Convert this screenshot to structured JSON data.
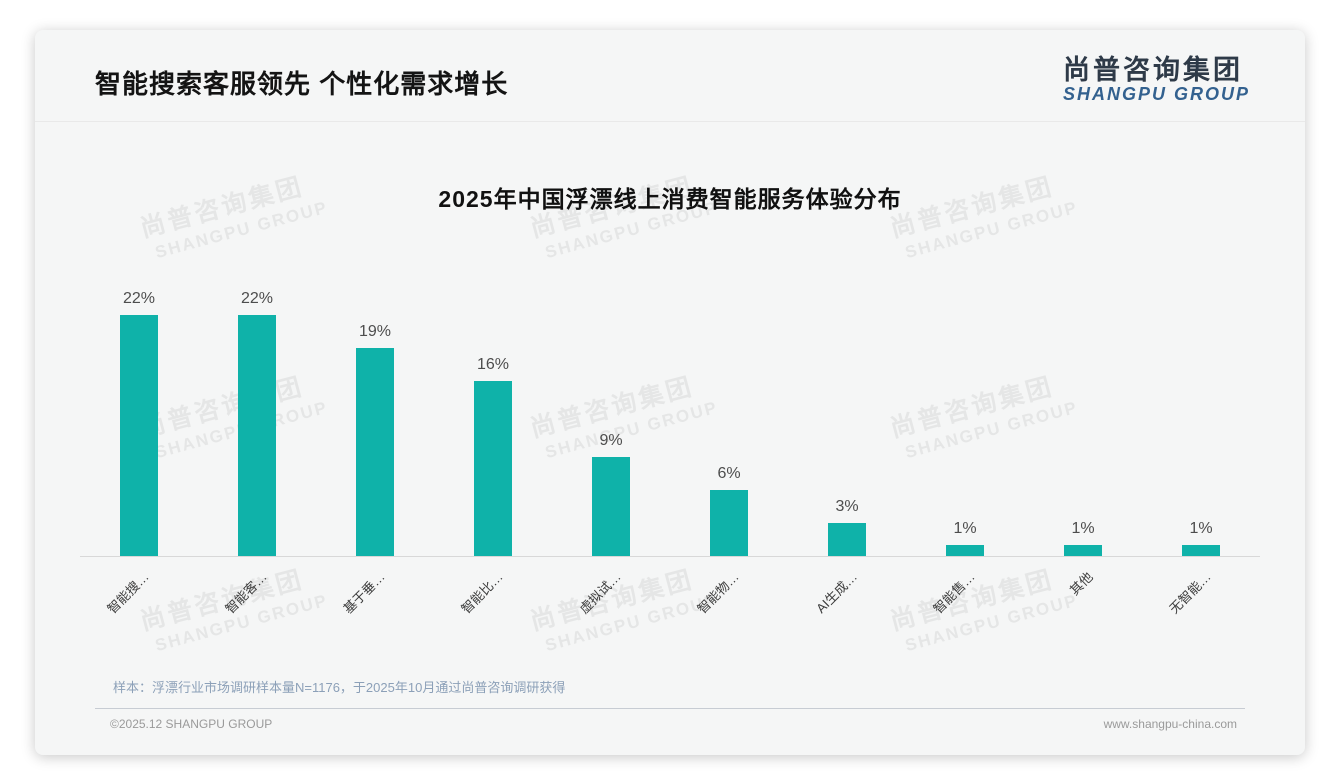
{
  "page": {
    "title": "智能搜索客服领先 个性化需求增长",
    "logo": {
      "cn": "尚普咨询集团",
      "en": "SHANGPU GROUP"
    },
    "watermark": {
      "cn": "尚普咨询集团",
      "en": "SHANGPU GROUP"
    },
    "sample_note": "样本：浮漂行业市场调研样本量N=1176，于2025年10月通过尚普咨询调研获得",
    "footer_left": "©2025.12 SHANGPU GROUP",
    "footer_right": "www.shangpu-china.com"
  },
  "colors": {
    "bar": "#0fb2a9",
    "logo_en_blue": "#33618f",
    "sample_note_blue_gray": "#8ca0b8"
  },
  "chart_data": {
    "type": "bar",
    "title": "2025年中国浮漂线上消费智能服务体验分布",
    "categories": [
      "智能搜…",
      "智能客…",
      "基于垂…",
      "智能比…",
      "虚拟试…",
      "智能物…",
      "AI生成…",
      "智能售…",
      "其他",
      "无智能…"
    ],
    "values": [
      22,
      22,
      19,
      16,
      9,
      6,
      3,
      1,
      1,
      1
    ],
    "value_labels": [
      "22%",
      "22%",
      "19%",
      "16%",
      "9%",
      "6%",
      "3%",
      "1%",
      "1%",
      "1%"
    ],
    "unit": "%",
    "ylim": [
      0,
      25
    ],
    "grid": false,
    "legend": false,
    "bar_color": "#0fb2a9",
    "label_rotation_deg": 45
  }
}
